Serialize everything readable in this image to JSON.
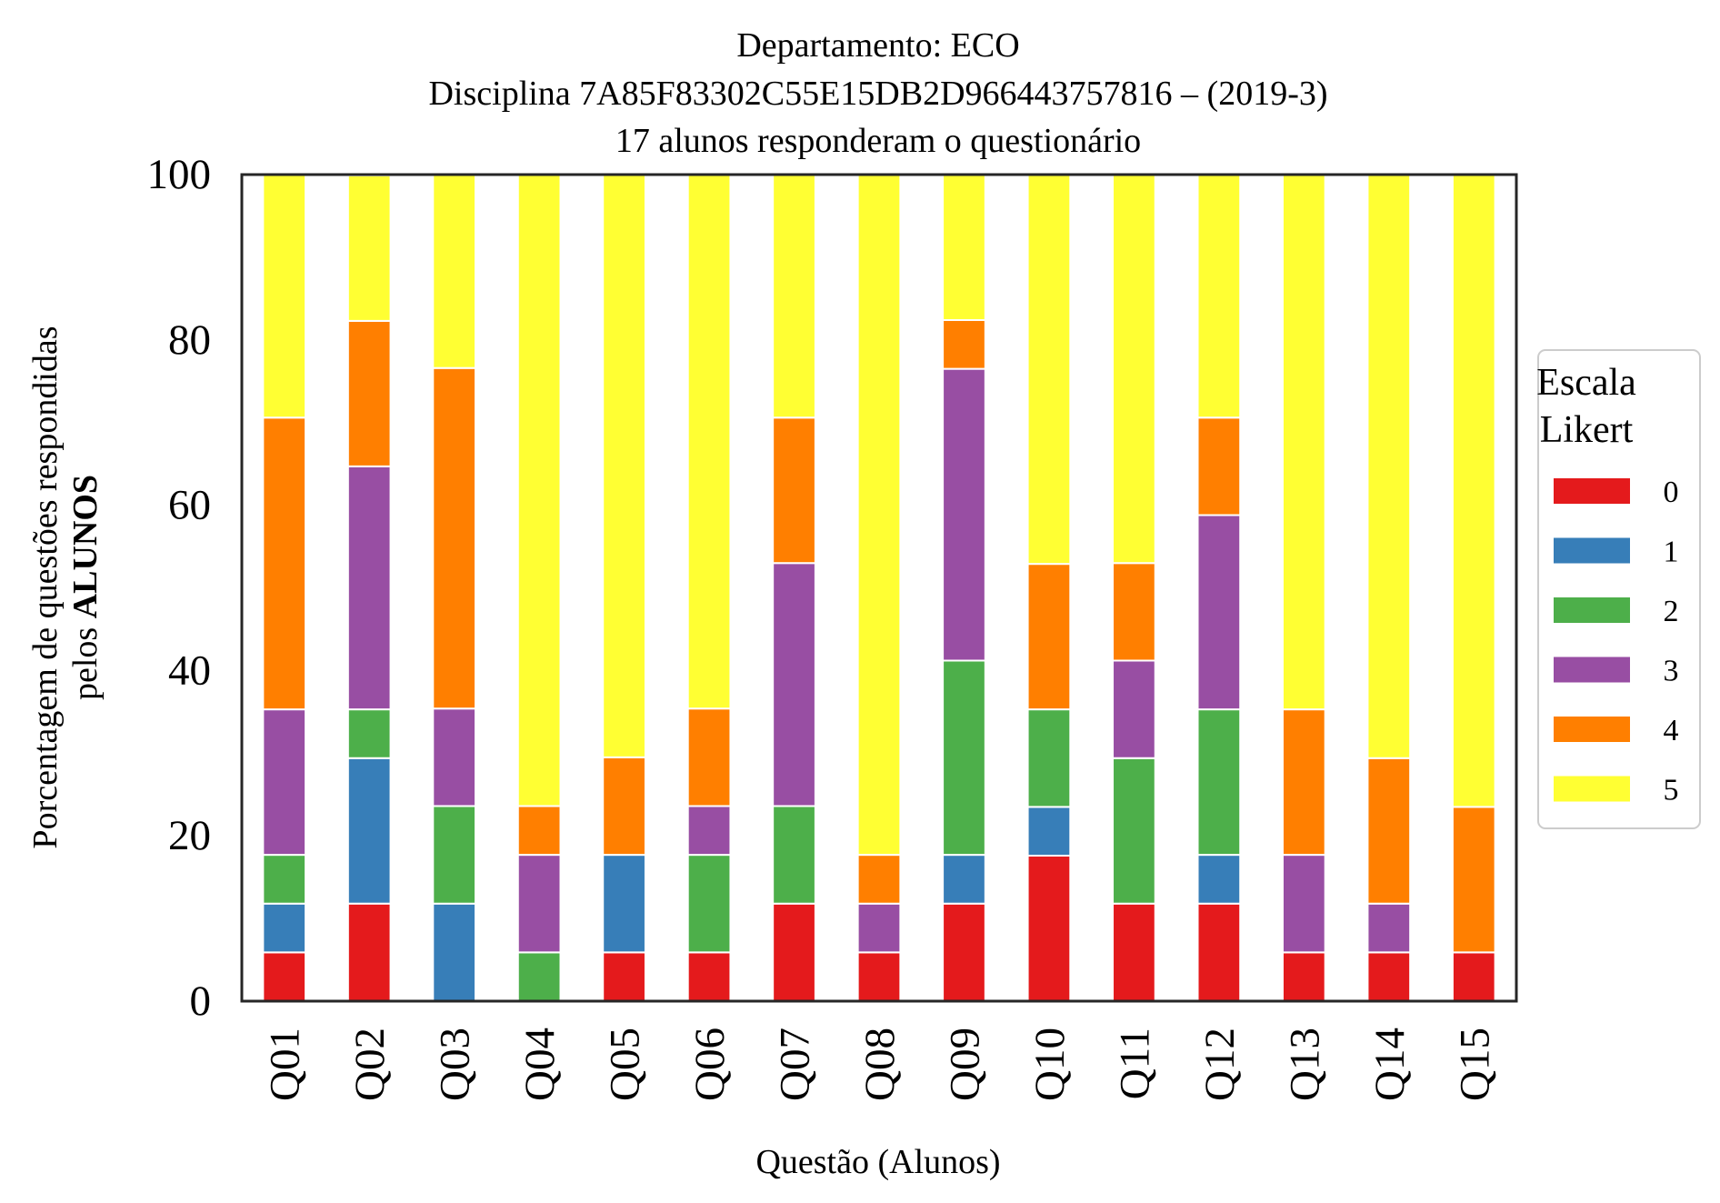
{
  "chart_data": {
    "type": "bar",
    "stacked": true,
    "title_lines": [
      "Departamento: ECO",
      "Disciplina 7A85F83302C55E15DB2D966443757816 – (2019-3)",
      "17 alunos responderam o questionário"
    ],
    "xlabel": "Questão (Alunos)",
    "ylabel_line1": "Porcentagem de questões respondidas",
    "ylabel_line2_prefix": "pelos ",
    "ylabel_line2_bold": "ALUNOS",
    "ylim": [
      0,
      100
    ],
    "yticks": [
      "0",
      "20",
      "40",
      "60",
      "80",
      "100"
    ],
    "grid": false,
    "legend": {
      "title_lines": [
        "Escala",
        "Likert"
      ],
      "placement": "right"
    },
    "categories": [
      "Q01",
      "Q02",
      "Q03",
      "Q04",
      "Q05",
      "Q06",
      "Q07",
      "Q08",
      "Q09",
      "Q10",
      "Q11",
      "Q12",
      "Q13",
      "Q14",
      "Q15"
    ],
    "series": [
      {
        "name": "0",
        "color": "#e41a1c",
        "values": [
          5.9,
          11.8,
          0,
          0,
          5.9,
          5.9,
          11.8,
          5.9,
          11.8,
          17.6,
          11.8,
          11.8,
          5.9,
          5.9,
          5.9
        ]
      },
      {
        "name": "1",
        "color": "#377eb8",
        "values": [
          5.9,
          17.6,
          11.8,
          0,
          11.8,
          0,
          0,
          0,
          5.9,
          5.9,
          0,
          5.9,
          0,
          0,
          0
        ]
      },
      {
        "name": "2",
        "color": "#4daf4a",
        "values": [
          5.9,
          5.9,
          11.8,
          5.9,
          0,
          11.8,
          11.8,
          0,
          23.5,
          11.8,
          17.6,
          17.6,
          0,
          0,
          0
        ]
      },
      {
        "name": "3",
        "color": "#984ea3",
        "values": [
          17.6,
          29.4,
          11.8,
          11.8,
          0,
          5.9,
          29.4,
          5.9,
          35.3,
          0,
          11.8,
          23.5,
          11.8,
          5.9,
          0
        ]
      },
      {
        "name": "4",
        "color": "#ff7f00",
        "values": [
          35.3,
          17.6,
          41.2,
          5.9,
          11.8,
          11.8,
          17.6,
          5.9,
          5.9,
          17.6,
          11.8,
          11.8,
          17.6,
          17.6,
          17.6
        ]
      },
      {
        "name": "5",
        "color": "#ffff33",
        "values": [
          29.4,
          17.6,
          23.5,
          76.5,
          70.6,
          64.7,
          29.4,
          82.4,
          17.6,
          47.1,
          47.1,
          29.4,
          64.7,
          70.6,
          76.5
        ]
      }
    ]
  }
}
